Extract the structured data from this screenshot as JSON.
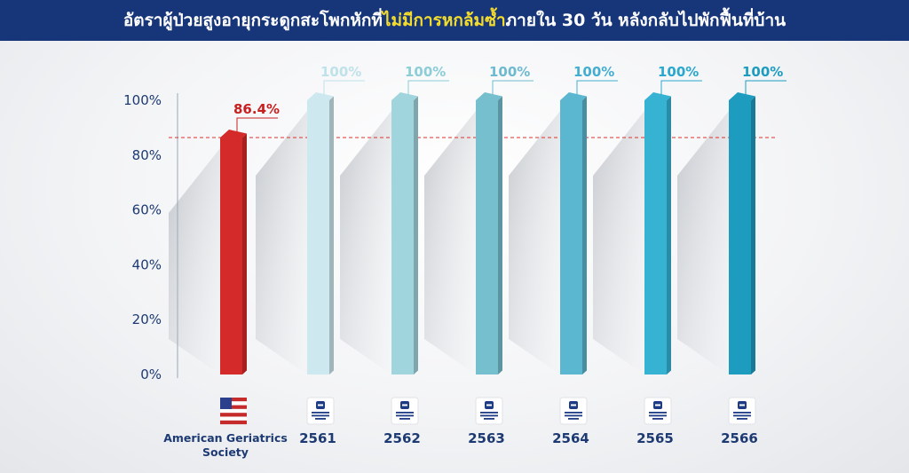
{
  "title": {
    "part1": "อัตราผู้ป่วยสูงอายุกระดูกสะโพกหักที่",
    "highlight": "ไม่มีการหกล้มซ้ำ",
    "part2": "ภายใน 30 วัน หลังกลับไปพักฟื้นที่บ้าน"
  },
  "chart_data": {
    "type": "bar",
    "categories": [
      "American Geriatrics Society",
      "2561",
      "2562",
      "2563",
      "2564",
      "2565",
      "2566"
    ],
    "values": [
      86.4,
      100,
      100,
      100,
      100,
      100,
      100
    ],
    "value_labels": [
      "86.4%",
      "100%",
      "100%",
      "100%",
      "100%",
      "100%",
      "100%"
    ],
    "ylim": [
      0,
      100
    ],
    "yticks": [
      "0%",
      "20%",
      "40%",
      "60%",
      "80%",
      "100%"
    ],
    "reference_line": 86.4,
    "reference_line_color": "#e0302d",
    "grid": false,
    "colors": [
      "#d42a29",
      "#cde8ee",
      "#a1d5dd",
      "#76bfcf",
      "#5bb6d0",
      "#36b2d3",
      "#1d9cc0"
    ],
    "label_colors": [
      "#c8201f",
      "#bfe2ea",
      "#8ccdd7",
      "#6dbad0",
      "#45aed0",
      "#2aa7cf",
      "#1d9cc0"
    ]
  },
  "icons": [
    "us-flag-icon",
    "bangkok-hospital-logo-icon",
    "bangkok-hospital-logo-icon",
    "bangkok-hospital-logo-icon",
    "bangkok-hospital-logo-icon",
    "bangkok-hospital-logo-icon",
    "bangkok-hospital-logo-icon"
  ]
}
